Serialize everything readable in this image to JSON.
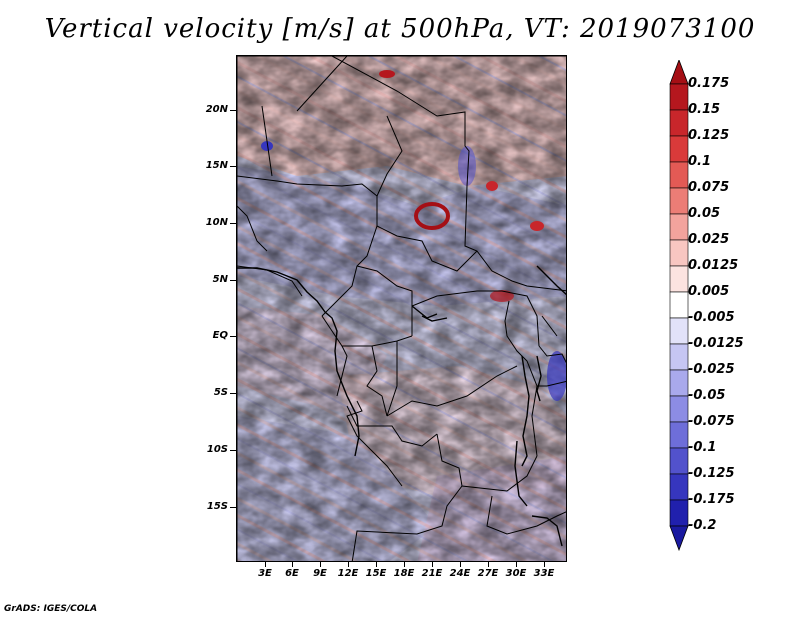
{
  "title": "Vertical velocity [m/s] at 500hPa, VT: 2019073100",
  "credit": "GrADS: IGES/COLA",
  "lat_labels": [
    "20N",
    "15N",
    "10N",
    "5N",
    "EQ",
    "5S",
    "10S",
    "15S"
  ],
  "lon_labels": [
    "3E",
    "6E",
    "9E",
    "12E",
    "15E",
    "18E",
    "21E",
    "24E",
    "27E",
    "30E",
    "33E"
  ],
  "colorbar": {
    "labels": [
      "0.175",
      "0.15",
      "0.125",
      "0.1",
      "0.075",
      "0.05",
      "0.025",
      "0.0125",
      "0.005",
      "-0.005",
      "-0.0125",
      "-0.025",
      "-0.05",
      "-0.075",
      "-0.1",
      "-0.125",
      "-0.175",
      "-0.2"
    ],
    "colors": [
      "#a50f15",
      "#b5171e",
      "#c8262b",
      "#d93a3a",
      "#e35a55",
      "#ec7d76",
      "#f3a39d",
      "#f8c6c1",
      "#fce3e0",
      "#ffffff",
      "#e2e2f9",
      "#c6c6f3",
      "#a9a9ec",
      "#8c8ce4",
      "#6e6ed9",
      "#5252cc",
      "#3636be",
      "#2020ad",
      "#1a1aa0"
    ],
    "top_arrow_color": "#a50f15",
    "bottom_arrow_color": "#1a1aa0"
  }
}
